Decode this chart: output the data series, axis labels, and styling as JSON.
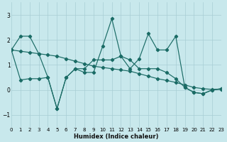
{
  "xlabel": "Humidex (Indice chaleur)",
  "bg_color": "#c8e8ec",
  "grid_color": "#a8cdd4",
  "line_color": "#1a6b65",
  "xlim": [
    0,
    23
  ],
  "ylim": [
    -1.5,
    3.5
  ],
  "yticks": [
    -1,
    0,
    1,
    2,
    3
  ],
  "xticks": [
    0,
    1,
    2,
    3,
    4,
    5,
    6,
    7,
    8,
    9,
    10,
    11,
    12,
    13,
    14,
    15,
    16,
    17,
    18,
    19,
    20,
    21,
    22,
    23
  ],
  "line1_x": [
    0,
    1,
    2,
    3,
    4,
    5,
    6,
    7,
    8,
    9,
    10,
    11,
    12,
    13,
    14,
    15,
    16,
    17,
    18,
    19,
    20,
    21,
    22,
    23
  ],
  "line1_y": [
    1.6,
    2.15,
    2.15,
    1.45,
    0.5,
    -0.75,
    0.5,
    0.85,
    0.7,
    0.7,
    1.75,
    2.85,
    1.35,
    0.85,
    1.25,
    2.25,
    1.6,
    1.6,
    2.15,
    0.1,
    -0.1,
    -0.15,
    0.0,
    0.05
  ],
  "line2_x": [
    0,
    1,
    2,
    3,
    4,
    5,
    6,
    7,
    8,
    9,
    10,
    11,
    12,
    13,
    14,
    15,
    16,
    17,
    18,
    19,
    20,
    21,
    22,
    23
  ],
  "line2_y": [
    1.6,
    0.4,
    0.45,
    0.45,
    0.5,
    -0.75,
    0.5,
    0.85,
    0.85,
    1.2,
    1.2,
    1.2,
    1.35,
    1.2,
    0.85,
    0.85,
    0.85,
    0.7,
    0.45,
    0.1,
    -0.1,
    -0.15,
    0.0,
    0.05
  ],
  "line3_x": [
    0,
    1,
    2,
    3,
    4,
    5,
    6,
    7,
    8,
    9,
    10,
    11,
    12,
    13,
    14,
    15,
    16,
    17,
    18,
    19,
    20,
    21,
    22,
    23
  ],
  "line3_y": [
    1.6,
    1.55,
    1.5,
    1.45,
    1.4,
    1.35,
    1.25,
    1.15,
    1.05,
    0.95,
    0.9,
    0.85,
    0.8,
    0.75,
    0.65,
    0.55,
    0.45,
    0.38,
    0.3,
    0.2,
    0.1,
    0.05,
    0.02,
    0.02
  ]
}
